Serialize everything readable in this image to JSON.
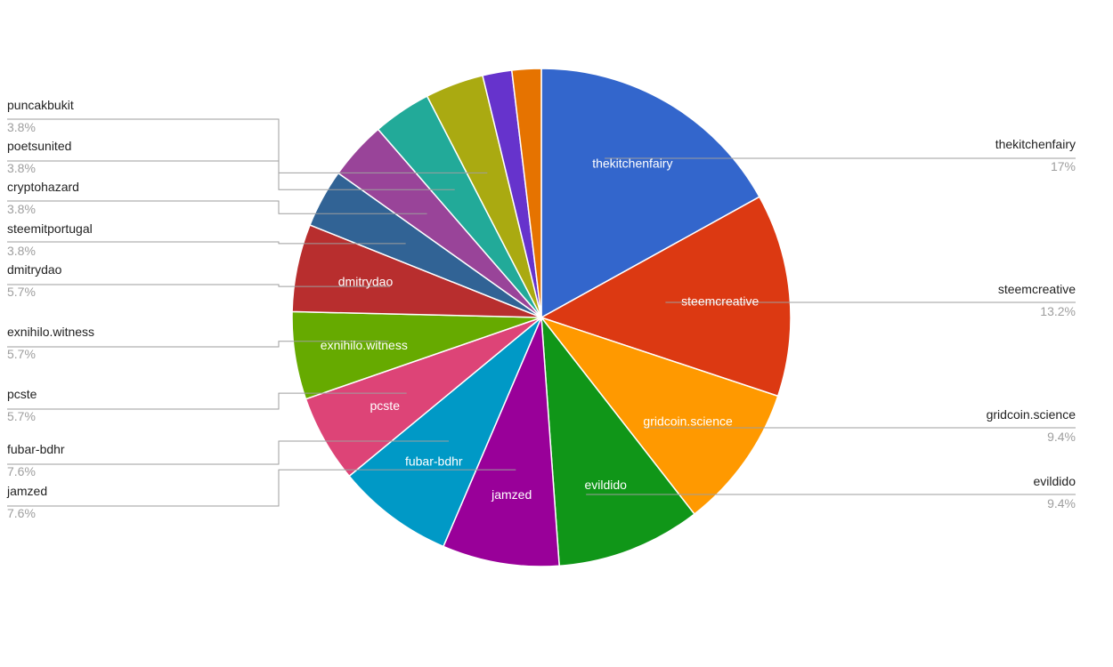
{
  "chart_data": {
    "type": "pie",
    "start_angle_deg": 0,
    "direction": "clockwise",
    "slices": [
      {
        "name": "thekitchenfairy",
        "percent_label": "17%",
        "value": 17,
        "color": "#3366cc",
        "legend": "right",
        "inner_label": true
      },
      {
        "name": "steemcreative",
        "percent_label": "13.2%",
        "value": 13.2,
        "color": "#dc3912",
        "legend": "right",
        "inner_label": true
      },
      {
        "name": "gridcoin.science",
        "percent_label": "9.4%",
        "value": 9.4,
        "color": "#ff9900",
        "legend": "right",
        "inner_label": true
      },
      {
        "name": "evildido",
        "percent_label": "9.4%",
        "value": 9.4,
        "color": "#109618",
        "legend": "right",
        "inner_label": true
      },
      {
        "name": "jamzed",
        "percent_label": "7.6%",
        "value": 7.6,
        "color": "#990099",
        "legend": "left",
        "inner_label": true
      },
      {
        "name": "fubar-bdhr",
        "percent_label": "7.6%",
        "value": 7.6,
        "color": "#0099c6",
        "legend": "left",
        "inner_label": true
      },
      {
        "name": "pcste",
        "percent_label": "5.7%",
        "value": 5.7,
        "color": "#dd4477",
        "legend": "left",
        "inner_label": true
      },
      {
        "name": "exnihilo.witness",
        "percent_label": "5.7%",
        "value": 5.7,
        "color": "#66aa00",
        "legend": "left",
        "inner_label": true
      },
      {
        "name": "dmitrydao",
        "percent_label": "5.7%",
        "value": 5.7,
        "color": "#b82e2e",
        "legend": "left",
        "inner_label": true
      },
      {
        "name": "steemitportugal",
        "percent_label": "3.8%",
        "value": 3.8,
        "color": "#316395",
        "legend": "left",
        "inner_label": false
      },
      {
        "name": "cryptohazard",
        "percent_label": "3.8%",
        "value": 3.8,
        "color": "#994499",
        "legend": "left",
        "inner_label": false
      },
      {
        "name": "poetsunited",
        "percent_label": "3.8%",
        "value": 3.8,
        "color": "#22aa99",
        "legend": "left",
        "inner_label": false
      },
      {
        "name": "puncakbukit",
        "percent_label": "3.8%",
        "value": 3.8,
        "color": "#aaaa11",
        "legend": "left",
        "inner_label": false
      },
      {
        "name": "",
        "percent_label": "",
        "value": 1.9,
        "color": "#6633cc",
        "legend": "none",
        "inner_label": false
      },
      {
        "name": "",
        "percent_label": "",
        "value": 1.9,
        "color": "#e67300",
        "legend": "none",
        "inner_label": false
      }
    ],
    "title": "",
    "legend_placement": "labeled leader lines left and right"
  }
}
